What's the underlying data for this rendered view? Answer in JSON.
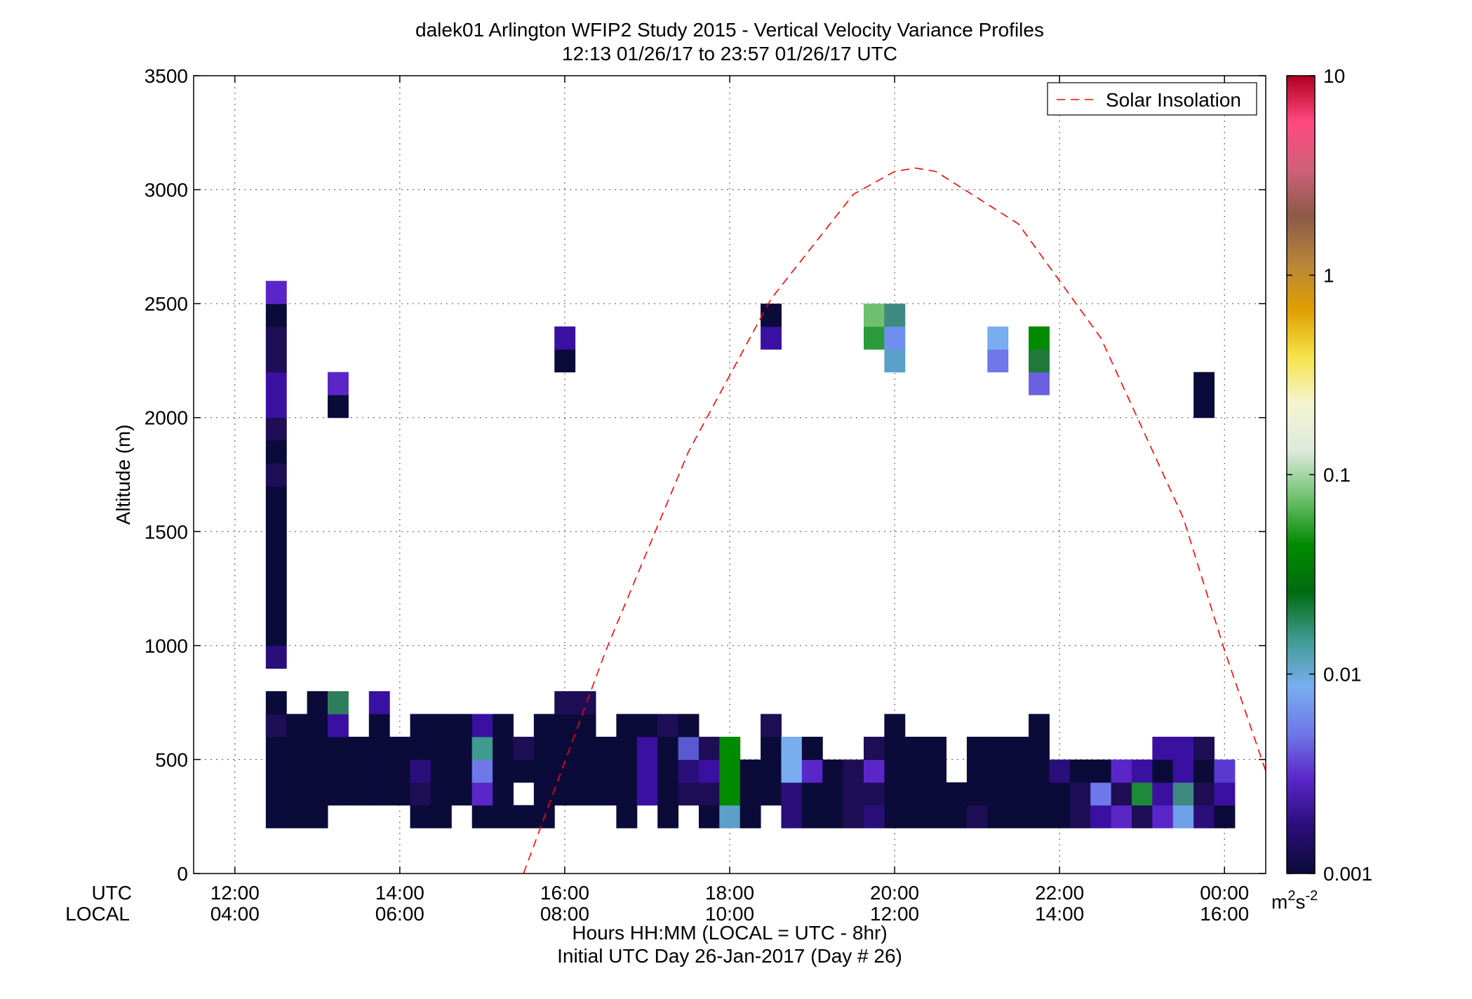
{
  "chart_data": {
    "type": "heatmap",
    "title_lines": [
      "dalek01 Arlington WFIP2 Study 2015 - Vertical Velocity Variance Profiles",
      "12:13 01/26/17 to 23:57 01/26/17  UTC"
    ],
    "ylabel": "Altitude (m)",
    "ylim": [
      0,
      3500
    ],
    "y_ticks": [
      0,
      500,
      1000,
      1500,
      2000,
      2500,
      3000,
      3500
    ],
    "xlim": [
      11.5,
      24.5
    ],
    "x_ticks_utc_hours": [
      12,
      14,
      16,
      18,
      20,
      22,
      24
    ],
    "x_tick_labels_utc": [
      "12:00",
      "14:00",
      "16:00",
      "18:00",
      "20:00",
      "22:00",
      "00:00"
    ],
    "x_tick_labels_local": [
      "04:00",
      "06:00",
      "08:00",
      "10:00",
      "12:00",
      "14:00",
      "16:00"
    ],
    "x_row_labels": [
      "UTC",
      "LOCAL"
    ],
    "xlabel_lines": [
      "Hours HH:MM  (LOCAL = UTC - 8hr)",
      "Initial UTC Day 26-Jan-2017 (Day # 26)"
    ],
    "grid": true,
    "legend": {
      "position": "top-right",
      "entries": [
        {
          "name": "Solar Insolation",
          "color": "#ff0000",
          "style": "dashed"
        }
      ]
    },
    "solar_insolation_curve": {
      "x": [
        15.5,
        16.5,
        17.5,
        18.5,
        19.5,
        20.0,
        20.25,
        20.5,
        21.5,
        22.5,
        23.5,
        24.0,
        24.5
      ],
      "y": [
        0,
        980,
        1850,
        2520,
        2980,
        3080,
        3095,
        3080,
        2850,
        2350,
        1560,
        980,
        450
      ]
    },
    "colorbar": {
      "scale": "log",
      "range": [
        0.001,
        10
      ],
      "ticks": [
        0.001,
        0.01,
        0.1,
        1,
        10
      ],
      "tick_labels": [
        "0.001",
        "0.01",
        "0.1",
        "1",
        "10"
      ],
      "unit_label": {
        "base": "m",
        "sup1": "2",
        "mid": "s",
        "sup2": "-2"
      },
      "colors": [
        "#0b0b3a",
        "#2a0e7a",
        "#5a26c8",
        "#6f78e8",
        "#78aef0",
        "#3f9a8f",
        "#006b10",
        "#008a00",
        "#6ec06e",
        "#dde9dd",
        "#f6f4d2",
        "#f5e44a",
        "#e0a000",
        "#b8853a",
        "#8c5a48",
        "#d06078",
        "#ff4a80",
        "#b00020"
      ]
    },
    "cell_hours": 0.25,
    "cell_meters": 100,
    "cells": [
      {
        "t": 12.5,
        "z": [
          [
            900,
            1000,
            "#2a0e7a"
          ],
          [
            1000,
            1700,
            "#0b0b3a"
          ],
          [
            1700,
            1800,
            "#1d0e55"
          ],
          [
            1800,
            1900,
            "#0b0b3a"
          ],
          [
            1900,
            2000,
            "#1d0e55"
          ],
          [
            2000,
            2200,
            "#3a10a0"
          ],
          [
            2200,
            2400,
            "#1d0e55"
          ],
          [
            2400,
            2500,
            "#0b0b3a"
          ],
          [
            2500,
            2600,
            "#5a26c8"
          ],
          [
            200,
            700,
            "#0b0b3a"
          ],
          [
            600,
            700,
            "#1d0e55"
          ],
          [
            700,
            800,
            "#0b0b3a"
          ]
        ]
      },
      {
        "t": 12.75,
        "z": [
          [
            200,
            700,
            "#0b0b3a"
          ]
        ]
      },
      {
        "t": 13.0,
        "z": [
          [
            200,
            800,
            "#0b0b3a"
          ]
        ]
      },
      {
        "t": 13.25,
        "z": [
          [
            300,
            600,
            "#0b0b3a"
          ],
          [
            600,
            700,
            "#3a10a0"
          ],
          [
            700,
            800,
            "#2f7d5a"
          ],
          [
            2000,
            2100,
            "#0b0b3a"
          ],
          [
            2100,
            2200,
            "#5a26c8"
          ]
        ]
      },
      {
        "t": 13.5,
        "z": [
          [
            300,
            600,
            "#0b0b3a"
          ]
        ]
      },
      {
        "t": 13.75,
        "z": [
          [
            300,
            700,
            "#0b0b3a"
          ],
          [
            700,
            800,
            "#3a10a0"
          ]
        ]
      },
      {
        "t": 14.0,
        "z": [
          [
            300,
            600,
            "#0b0b3a"
          ]
        ]
      },
      {
        "t": 14.25,
        "z": [
          [
            200,
            300,
            "#0b0b3a"
          ],
          [
            300,
            400,
            "#1d0e55"
          ],
          [
            400,
            500,
            "#2a0e7a"
          ],
          [
            500,
            700,
            "#0b0b3a"
          ]
        ]
      },
      {
        "t": 14.5,
        "z": [
          [
            200,
            700,
            "#0b0b3a"
          ]
        ]
      },
      {
        "t": 14.75,
        "z": [
          [
            300,
            700,
            "#0b0b3a"
          ]
        ]
      },
      {
        "t": 15.0,
        "z": [
          [
            200,
            300,
            "#0b0b3a"
          ],
          [
            300,
            400,
            "#5a26c8"
          ],
          [
            400,
            500,
            "#6f78e8"
          ],
          [
            500,
            600,
            "#3f9a8f"
          ],
          [
            600,
            700,
            "#3a10a0"
          ]
        ]
      },
      {
        "t": 15.25,
        "z": [
          [
            200,
            600,
            "#0b0b3a"
          ],
          [
            600,
            700,
            "#0b0b3a"
          ]
        ]
      },
      {
        "t": 15.5,
        "z": [
          [
            200,
            300,
            "#0b0b3a"
          ],
          [
            400,
            500,
            "#0b0b3a"
          ],
          [
            500,
            600,
            "#1d0e55"
          ]
        ]
      },
      {
        "t": 15.75,
        "z": [
          [
            200,
            700,
            "#0b0b3a"
          ]
        ]
      },
      {
        "t": 16.0,
        "z": [
          [
            300,
            700,
            "#0b0b3a"
          ],
          [
            700,
            800,
            "#1d0e55"
          ],
          [
            2200,
            2300,
            "#0b0b3a"
          ],
          [
            2300,
            2400,
            "#3a10a0"
          ]
        ]
      },
      {
        "t": 16.25,
        "z": [
          [
            300,
            600,
            "#0b0b3a"
          ],
          [
            600,
            700,
            "#0b0b3a"
          ],
          [
            700,
            800,
            "#1d0e55"
          ]
        ]
      },
      {
        "t": 16.5,
        "z": [
          [
            300,
            600,
            "#0b0b3a"
          ]
        ]
      },
      {
        "t": 16.75,
        "z": [
          [
            200,
            700,
            "#0b0b3a"
          ]
        ]
      },
      {
        "t": 17.0,
        "z": [
          [
            300,
            400,
            "#3a10a0"
          ],
          [
            400,
            500,
            "#3a10a0"
          ],
          [
            500,
            600,
            "#3a10a0"
          ],
          [
            600,
            700,
            "#0b0b3a"
          ]
        ]
      },
      {
        "t": 17.25,
        "z": [
          [
            200,
            600,
            "#0b0b3a"
          ],
          [
            600,
            700,
            "#1d0e55"
          ]
        ]
      },
      {
        "t": 17.5,
        "z": [
          [
            300,
            400,
            "#1d0e55"
          ],
          [
            400,
            500,
            "#2a0e7a"
          ],
          [
            500,
            600,
            "#5a5ad0"
          ],
          [
            600,
            700,
            "#0b0b3a"
          ]
        ]
      },
      {
        "t": 17.75,
        "z": [
          [
            200,
            300,
            "#0b0b3a"
          ],
          [
            300,
            400,
            "#1d0e55"
          ],
          [
            400,
            500,
            "#3a10a0"
          ],
          [
            500,
            600,
            "#1d0e55"
          ]
        ]
      },
      {
        "t": 18.0,
        "z": [
          [
            200,
            300,
            "#5aa0c8"
          ],
          [
            300,
            600,
            "#008a00"
          ]
        ]
      },
      {
        "t": 18.25,
        "z": [
          [
            200,
            500,
            "#0b0b3a"
          ]
        ]
      },
      {
        "t": 18.5,
        "z": [
          [
            300,
            500,
            "#0b0b3a"
          ],
          [
            500,
            600,
            "#0b0b3a"
          ],
          [
            600,
            700,
            "#1d0e55"
          ],
          [
            2300,
            2400,
            "#3a10a0"
          ],
          [
            2400,
            2500,
            "#0b0b3a"
          ]
        ]
      },
      {
        "t": 18.75,
        "z": [
          [
            200,
            400,
            "#2a0e7a"
          ],
          [
            400,
            600,
            "#78aef0"
          ]
        ]
      },
      {
        "t": 19.0,
        "z": [
          [
            200,
            400,
            "#0b0b3a"
          ],
          [
            400,
            500,
            "#5a26c8"
          ],
          [
            500,
            600,
            "#0b0b3a"
          ]
        ]
      },
      {
        "t": 19.25,
        "z": [
          [
            200,
            500,
            "#0b0b3a"
          ]
        ]
      },
      {
        "t": 19.5,
        "z": [
          [
            200,
            400,
            "#1d0e55"
          ],
          [
            400,
            500,
            "#1d0e55"
          ]
        ]
      },
      {
        "t": 19.75,
        "z": [
          [
            200,
            300,
            "#2a0e7a"
          ],
          [
            300,
            400,
            "#1d0e55"
          ],
          [
            400,
            500,
            "#5a26c8"
          ],
          [
            500,
            600,
            "#1d0e55"
          ],
          [
            2300,
            2400,
            "#2a9a3a"
          ],
          [
            2400,
            2500,
            "#6ec06e"
          ]
        ]
      },
      {
        "t": 20.0,
        "z": [
          [
            200,
            700,
            "#0b0b3a"
          ],
          [
            2200,
            2300,
            "#5aa0c8"
          ],
          [
            2300,
            2400,
            "#6f8ff0"
          ],
          [
            2400,
            2500,
            "#3f8a80"
          ]
        ]
      },
      {
        "t": 20.25,
        "z": [
          [
            200,
            600,
            "#0b0b3a"
          ]
        ]
      },
      {
        "t": 20.5,
        "z": [
          [
            200,
            600,
            "#0b0b3a"
          ]
        ]
      },
      {
        "t": 20.75,
        "z": [
          [
            200,
            400,
            "#0b0b3a"
          ]
        ]
      },
      {
        "t": 21.0,
        "z": [
          [
            200,
            300,
            "#1d0e55"
          ],
          [
            300,
            600,
            "#0b0b3a"
          ]
        ]
      },
      {
        "t": 21.25,
        "z": [
          [
            200,
            600,
            "#0b0b3a"
          ],
          [
            2200,
            2300,
            "#6f78e8"
          ],
          [
            2300,
            2400,
            "#78aef0"
          ]
        ]
      },
      {
        "t": 21.5,
        "z": [
          [
            200,
            600,
            "#0b0b3a"
          ]
        ]
      },
      {
        "t": 21.75,
        "z": [
          [
            200,
            700,
            "#0b0b3a"
          ],
          [
            2100,
            2200,
            "#6a60e0"
          ],
          [
            2200,
            2300,
            "#1f7a3a"
          ],
          [
            2300,
            2400,
            "#008a00"
          ]
        ]
      },
      {
        "t": 22.0,
        "z": [
          [
            200,
            400,
            "#0b0b3a"
          ],
          [
            400,
            500,
            "#2a0e7a"
          ]
        ]
      },
      {
        "t": 22.25,
        "z": [
          [
            200,
            300,
            "#1d0e55"
          ],
          [
            300,
            400,
            "#1d0e55"
          ],
          [
            400,
            500,
            "#0b0b3a"
          ]
        ]
      },
      {
        "t": 22.5,
        "z": [
          [
            200,
            300,
            "#3a10a0"
          ],
          [
            300,
            400,
            "#6f78e8"
          ],
          [
            400,
            500,
            "#0b0b3a"
          ]
        ]
      },
      {
        "t": 22.75,
        "z": [
          [
            200,
            300,
            "#5a26c8"
          ],
          [
            300,
            400,
            "#1d0e55"
          ],
          [
            400,
            500,
            "#5a26c8"
          ]
        ]
      },
      {
        "t": 23.0,
        "z": [
          [
            200,
            300,
            "#1d0e55"
          ],
          [
            300,
            400,
            "#1f8a3a"
          ],
          [
            400,
            500,
            "#3a10a0"
          ]
        ]
      },
      {
        "t": 23.25,
        "z": [
          [
            200,
            300,
            "#5a26c8"
          ],
          [
            300,
            400,
            "#3a10a0"
          ],
          [
            400,
            500,
            "#0b0b3a"
          ],
          [
            500,
            600,
            "#3a10a0"
          ]
        ]
      },
      {
        "t": 23.5,
        "z": [
          [
            200,
            300,
            "#6fa0e8"
          ],
          [
            300,
            400,
            "#3f8a80"
          ],
          [
            400,
            500,
            "#3a10a0"
          ],
          [
            500,
            600,
            "#3a10a0"
          ]
        ]
      },
      {
        "t": 23.75,
        "z": [
          [
            200,
            300,
            "#2a0e7a"
          ],
          [
            300,
            400,
            "#1d0e55"
          ],
          [
            400,
            500,
            "#0b0b3a"
          ],
          [
            500,
            600,
            "#1d0e55"
          ],
          [
            2000,
            2200,
            "#0b0b3a"
          ]
        ]
      },
      {
        "t": 24.0,
        "z": [
          [
            200,
            300,
            "#0b0b3a"
          ],
          [
            300,
            400,
            "#3a10a0"
          ],
          [
            400,
            500,
            "#5a3ad0"
          ]
        ]
      }
    ]
  }
}
